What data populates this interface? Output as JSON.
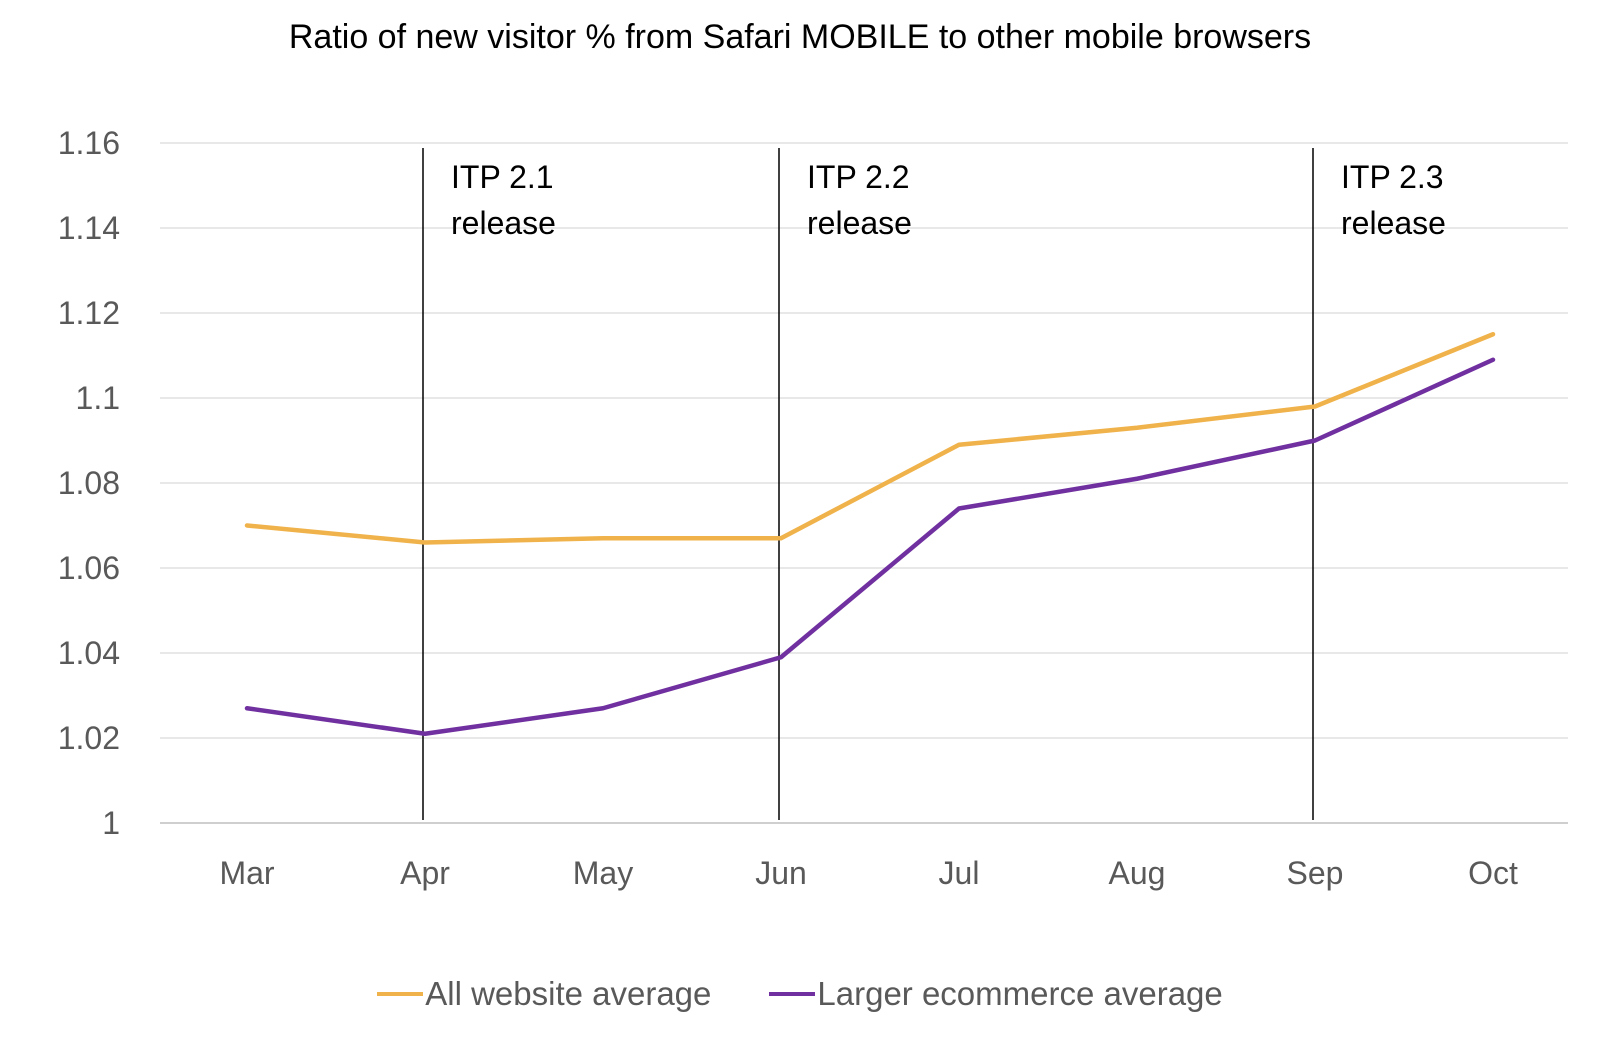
{
  "chart_data": {
    "type": "line",
    "title": "Ratio of new visitor % from Safari MOBILE to other mobile browsers",
    "categories": [
      "Mar",
      "Apr",
      "May",
      "Jun",
      "Jul",
      "Aug",
      "Sep",
      "Oct"
    ],
    "ylim": [
      1,
      1.16
    ],
    "yticks": [
      1,
      1.02,
      1.04,
      1.06,
      1.08,
      1.1,
      1.12,
      1.14,
      1.16
    ],
    "ytick_labels": [
      "1",
      "1.02",
      "1.04",
      "1.06",
      "1.08",
      "1.1",
      "1.12",
      "1.14",
      "1.16"
    ],
    "grid": true,
    "legend_position": "bottom",
    "series": [
      {
        "name": "All website average",
        "color": "#F0B24A",
        "values": [
          1.07,
          1.066,
          1.067,
          1.067,
          1.089,
          1.093,
          1.098,
          1.115
        ]
      },
      {
        "name": "Larger ecommerce average",
        "color": "#7030A0",
        "values": [
          1.027,
          1.021,
          1.027,
          1.039,
          1.074,
          1.081,
          1.09,
          1.109
        ]
      }
    ],
    "annotations": [
      {
        "category": "Apr",
        "offset": 0.0,
        "line1": "ITP 2.1",
        "line2": "release"
      },
      {
        "category": "Jun",
        "offset": 0.0,
        "line1": "ITP 2.2",
        "line2": "release"
      },
      {
        "category": "Sep",
        "offset": 0.0,
        "line1": "ITP 2.3",
        "line2": "release"
      }
    ]
  }
}
